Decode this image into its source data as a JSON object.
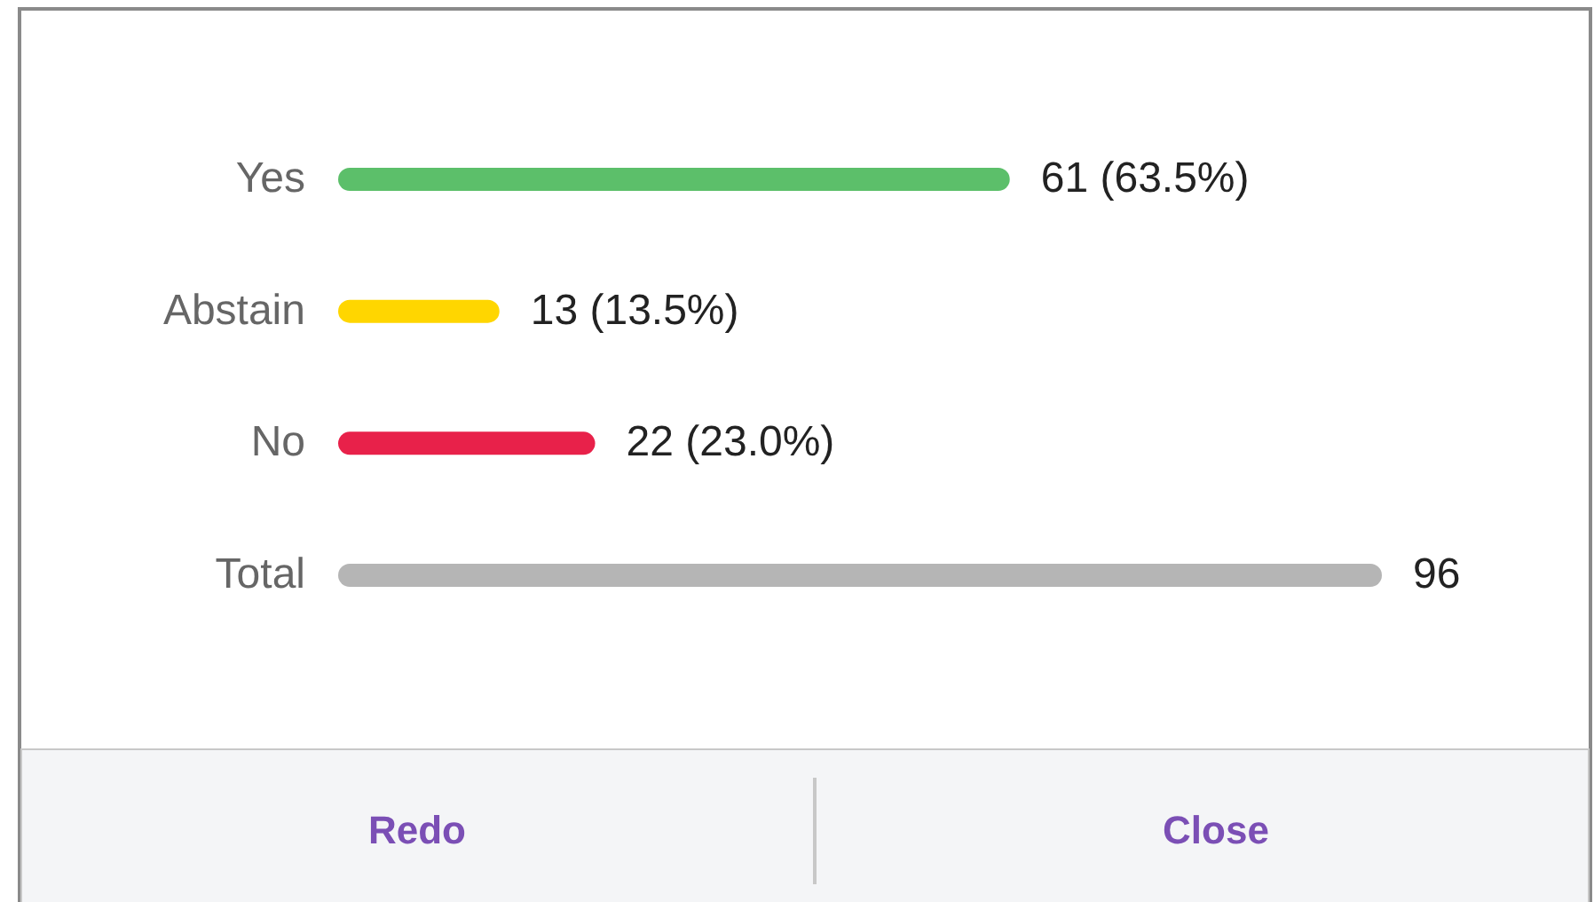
{
  "chart_data": {
    "type": "bar",
    "orientation": "horizontal",
    "categories": [
      "Yes",
      "Abstain",
      "No",
      "Total"
    ],
    "values": [
      61,
      13,
      22,
      96
    ],
    "colors": [
      "#5cbf6a",
      "#ffd600",
      "#e8214a",
      "#b5b5b5"
    ],
    "value_labels": [
      "61 (63.5%)",
      "13 (13.5%)",
      "22 (23.0%)",
      "96"
    ],
    "annotations": [
      "Redo",
      "Close"
    ]
  }
}
